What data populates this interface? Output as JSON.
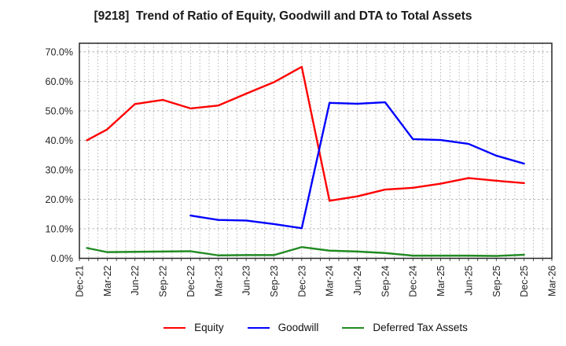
{
  "chart_data": {
    "type": "line",
    "title": "[9218]  Trend of Ratio of Equity, Goodwill and DTA to Total Assets",
    "x_tick_labels": [
      "Dec-21",
      "Mar-22",
      "Jun-22",
      "Sep-22",
      "Dec-22",
      "Mar-23",
      "Jun-23",
      "Sep-23",
      "Dec-23",
      "Mar-24",
      "Jun-24",
      "Sep-24",
      "Dec-24",
      "Mar-25",
      "Jun-25",
      "Sep-25",
      "Dec-25",
      "Mar-26"
    ],
    "y_ticks": [
      0,
      10,
      20,
      30,
      40,
      50,
      60,
      70
    ],
    "y_tick_labels": [
      "0.0%",
      "10.0%",
      "20.0%",
      "30.0%",
      "40.0%",
      "50.0%",
      "60.0%",
      "70.0%"
    ],
    "ylim": [
      0,
      72.9
    ],
    "grid": {
      "horizontal": "dashed at each 10%",
      "vertical": "dotted monthly",
      "color": "#aaaaaa"
    },
    "axis_border_color": "#262626",
    "tick_label_color": "#262626",
    "legend_position": "bottom-center",
    "series": [
      {
        "name": "Equity",
        "color": "#ff0000",
        "x": [
          0.27,
          1,
          2,
          3,
          4,
          5,
          6,
          7,
          8,
          9,
          10,
          11,
          12,
          13,
          14,
          15,
          16
        ],
        "values": [
          40.0,
          43.7,
          52.3,
          53.7,
          50.8,
          51.8,
          55.8,
          59.7,
          64.9,
          19.5,
          21.0,
          23.3,
          23.9,
          25.3,
          27.2,
          26.3,
          25.5
        ]
      },
      {
        "name": "Goodwill",
        "color": "#0000ff",
        "x": [
          4,
          5,
          6,
          7,
          8,
          9,
          10,
          11,
          12,
          13,
          14,
          15,
          16
        ],
        "values": [
          14.5,
          13.0,
          12.8,
          11.6,
          10.2,
          52.7,
          52.4,
          52.9,
          40.4,
          40.1,
          38.8,
          34.8,
          32.1
        ]
      },
      {
        "name": "Deferred Tax Assets",
        "color": "#228b22",
        "x": [
          0.27,
          1,
          2,
          3,
          4,
          5,
          6,
          7,
          8,
          9,
          10,
          11,
          12,
          13,
          14,
          15,
          16
        ],
        "values": [
          3.5,
          2.1,
          2.2,
          2.3,
          2.4,
          1.0,
          1.1,
          1.1,
          3.8,
          2.6,
          2.3,
          1.8,
          0.9,
          0.9,
          0.9,
          0.8,
          1.2
        ]
      }
    ]
  }
}
